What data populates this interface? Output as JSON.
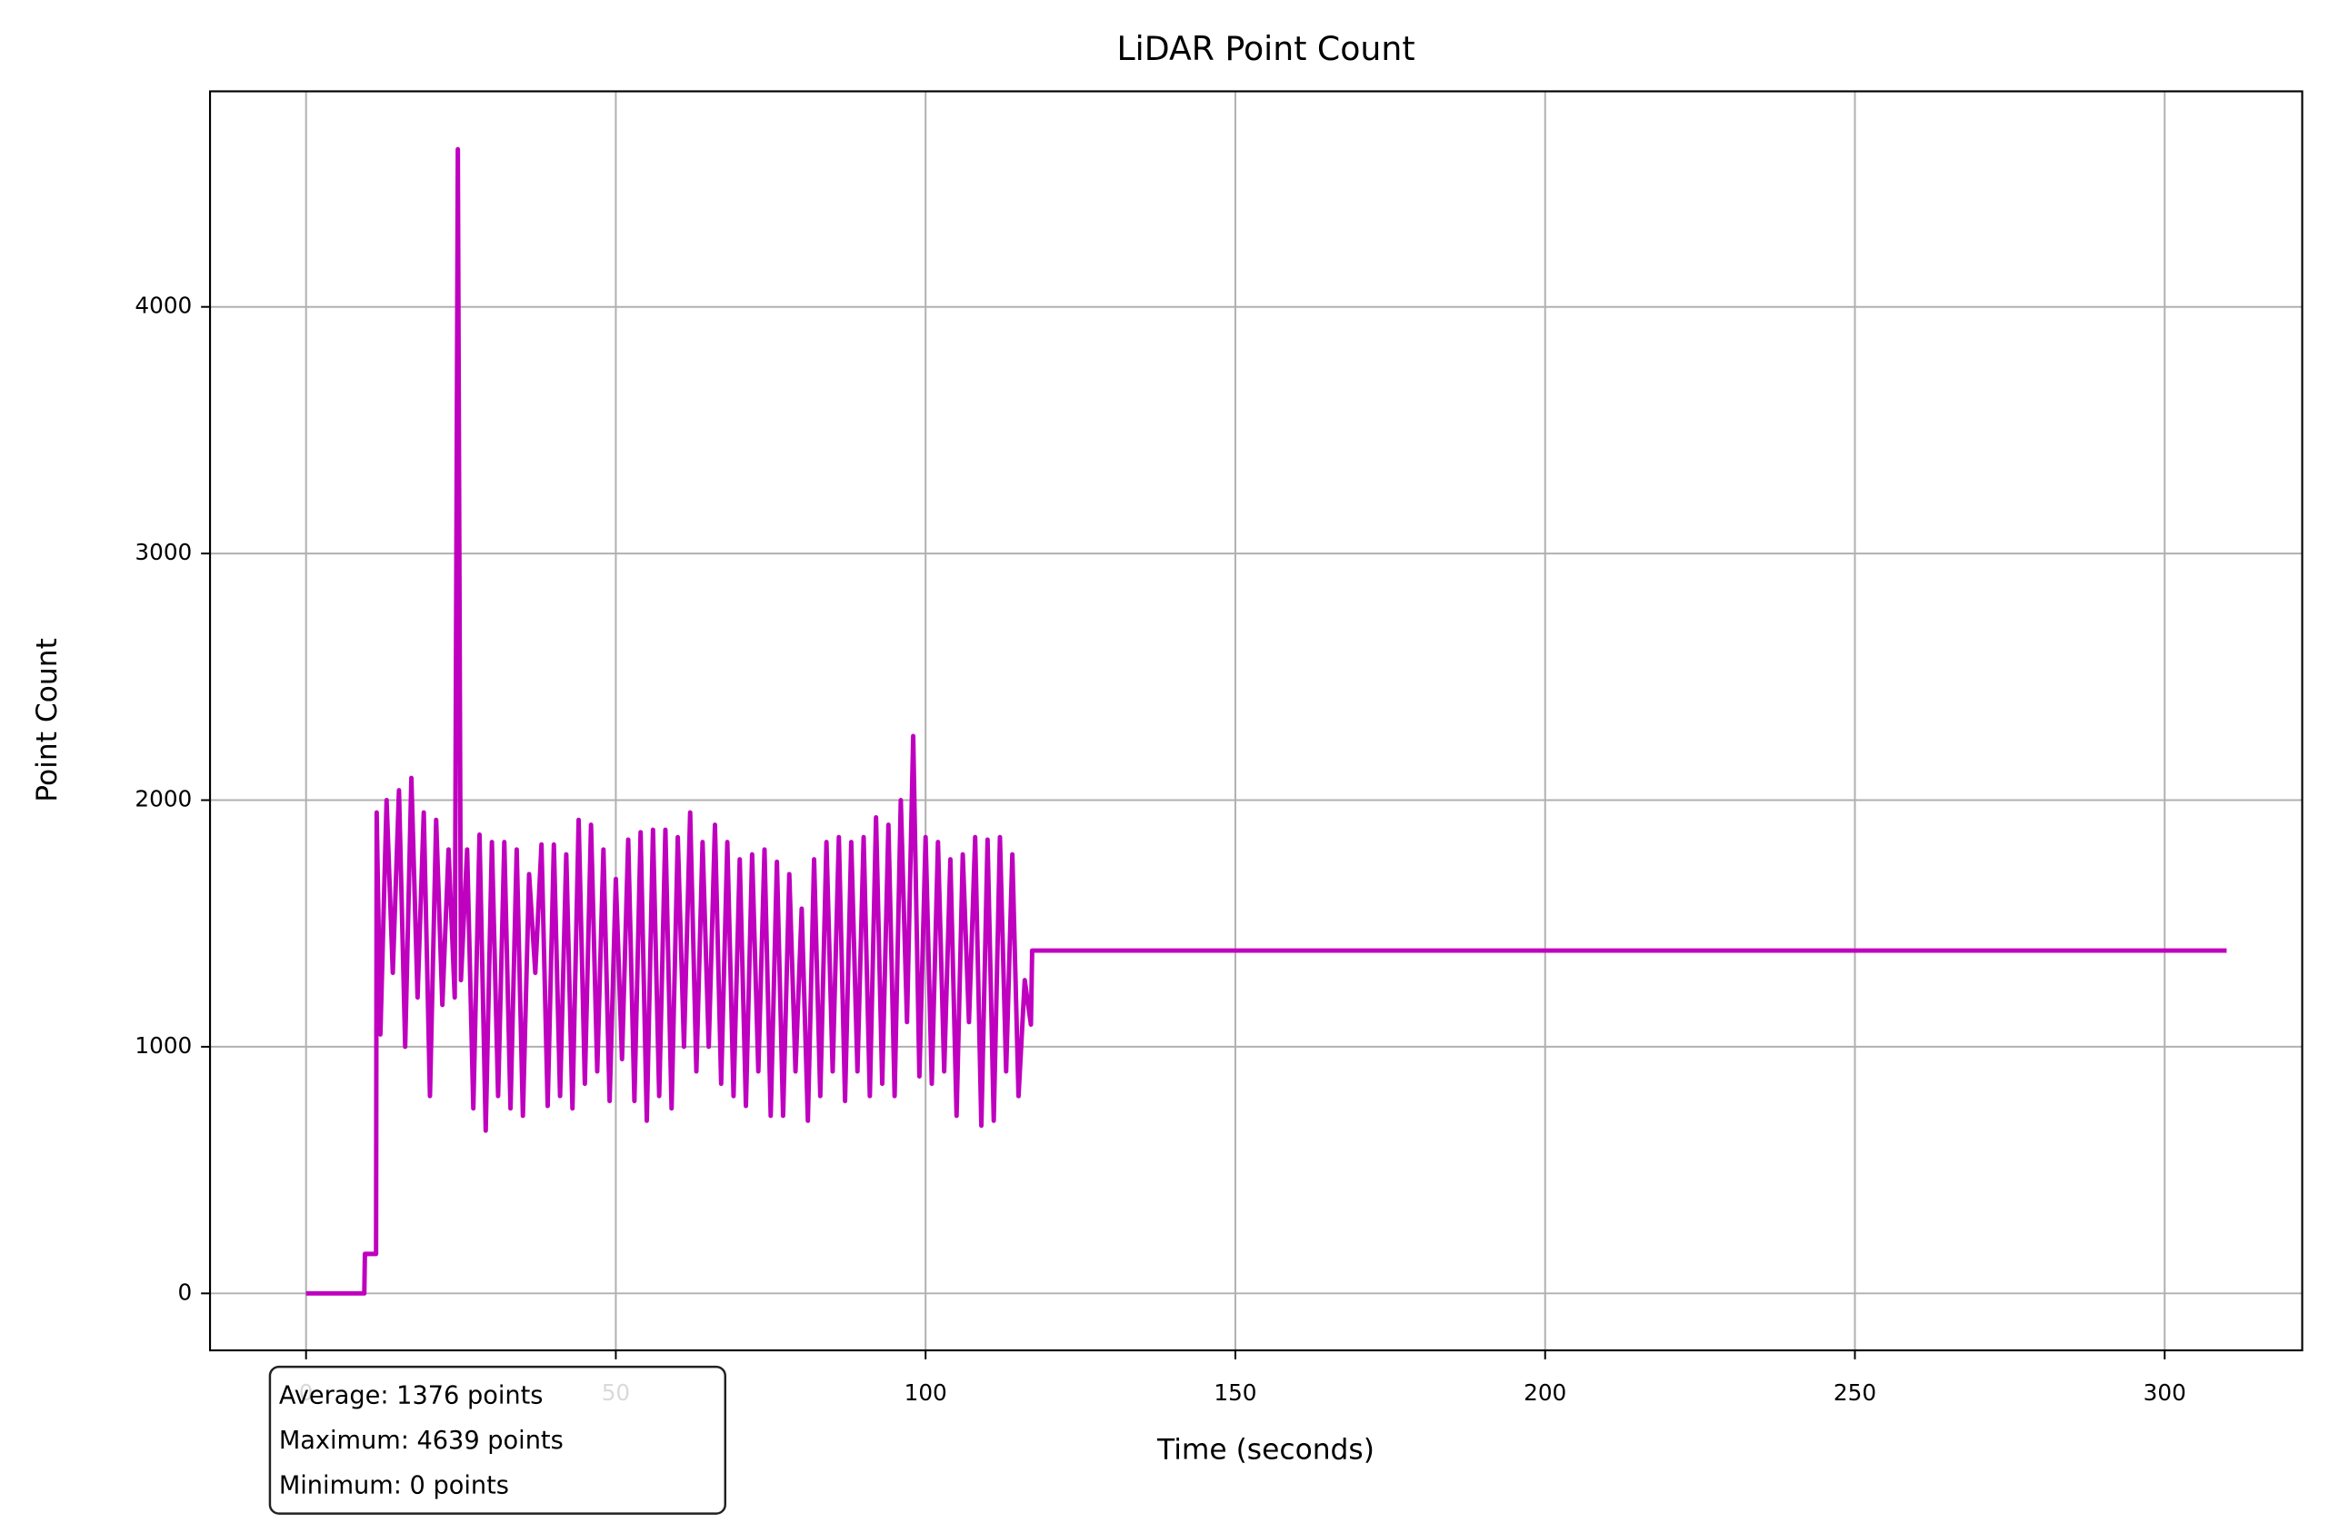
{
  "chart_data": {
    "type": "line",
    "title": "LiDAR Point Count",
    "xlabel": "Time (seconds)",
    "ylabel": "Point Count",
    "color": "#bf00bf",
    "grid": true,
    "xlim": [
      -15.5,
      322.2
    ],
    "ylim": [
      -231,
      4874
    ],
    "xticks": [
      0,
      50,
      100,
      150,
      200,
      250,
      300
    ],
    "yticks": [
      0,
      1000,
      2000,
      3000,
      4000
    ],
    "annotation": [
      "Average: 1376 points",
      "Maximum: 4639 points",
      "Minimum: 0 points"
    ],
    "x": [
      0,
      9.4,
      9.5,
      11.3,
      11.4,
      12,
      13,
      14,
      15,
      16,
      17,
      18,
      19,
      20,
      21,
      22,
      23,
      24,
      24.5,
      25,
      26,
      27,
      28,
      29,
      30,
      31,
      32,
      33,
      34,
      35,
      36,
      37,
      38,
      39,
      40,
      41,
      42,
      43,
      44,
      45,
      46,
      47,
      48,
      49,
      50,
      51,
      52,
      53,
      54,
      55,
      56,
      57,
      58,
      59,
      60,
      61,
      62,
      63,
      64,
      65,
      66,
      67,
      68,
      69,
      70,
      71,
      72,
      73,
      74,
      75,
      76,
      77,
      78,
      79,
      80,
      81,
      82,
      83,
      84,
      85,
      86,
      87,
      88,
      89,
      90,
      91,
      92,
      93,
      94,
      95,
      96,
      97,
      98,
      99,
      100,
      101,
      102,
      103,
      104,
      105,
      106,
      107,
      108,
      109,
      110,
      111,
      112,
      113,
      114,
      115,
      116,
      117,
      117.2,
      310
    ],
    "values": [
      0,
      0,
      160,
      160,
      1950,
      1050,
      2000,
      1300,
      2040,
      1000,
      2090,
      1200,
      1950,
      800,
      1920,
      1170,
      1800,
      1200,
      4639,
      1270,
      1800,
      750,
      1860,
      660,
      1830,
      800,
      1830,
      750,
      1800,
      720,
      1700,
      1300,
      1820,
      760,
      1820,
      800,
      1780,
      750,
      1920,
      850,
      1900,
      900,
      1800,
      780,
      1680,
      950,
      1840,
      780,
      1870,
      700,
      1880,
      800,
      1880,
      750,
      1850,
      1000,
      1950,
      900,
      1830,
      1000,
      1900,
      850,
      1830,
      800,
      1760,
      760,
      1780,
      900,
      1800,
      720,
      1750,
      720,
      1700,
      900,
      1560,
      700,
      1760,
      800,
      1830,
      900,
      1850,
      780,
      1830,
      900,
      1850,
      800,
      1930,
      850,
      1900,
      800,
      2000,
      1100,
      2260,
      880,
      1850,
      850,
      1830,
      900,
      1760,
      720,
      1780,
      1100,
      1850,
      680,
      1840,
      700,
      1850,
      900,
      1780,
      800,
      1270,
      1090,
      1390,
      1390
    ]
  }
}
